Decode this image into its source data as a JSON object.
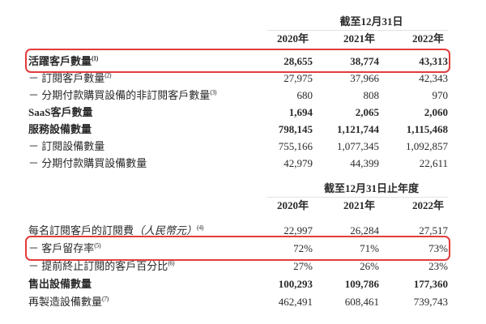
{
  "page": {
    "background": "#ffffff",
    "text_color": "#2a2a2a",
    "highlight_color": "#e23c3c"
  },
  "tables": [
    {
      "period_label": "截至12月31日",
      "years": [
        "2020年",
        "2021年",
        "2022年"
      ],
      "rows": [
        {
          "label": "活躍客戶數量",
          "footnote": "(1)",
          "values": [
            "28,655",
            "38,774",
            "43,313"
          ],
          "bold": true,
          "highlight": true
        },
        {
          "label": "－ 訂閱客戶數量",
          "footnote": "(2)",
          "values": [
            "27,975",
            "37,966",
            "42,343"
          ],
          "bold": false,
          "highlight": false
        },
        {
          "label": "－ 分期付款購買設備的非訂閱客戶數量",
          "footnote": "(3)",
          "values": [
            "680",
            "808",
            "970"
          ],
          "bold": false,
          "highlight": false
        },
        {
          "label": "SaaS客戶數量",
          "footnote": "",
          "values": [
            "1,694",
            "2,065",
            "2,060"
          ],
          "bold": true,
          "highlight": false
        },
        {
          "label": "服務設備數量",
          "footnote": "",
          "values": [
            "798,145",
            "1,121,744",
            "1,115,468"
          ],
          "bold": true,
          "highlight": false
        },
        {
          "label": "－ 訂閱設備數量",
          "footnote": "",
          "values": [
            "755,166",
            "1,077,345",
            "1,092,857"
          ],
          "bold": false,
          "highlight": false
        },
        {
          "label": "－ 分期付款購買設備數量",
          "footnote": "",
          "values": [
            "42,979",
            "44,399",
            "22,611"
          ],
          "bold": false,
          "highlight": false
        }
      ]
    },
    {
      "period_label": "截至12月31日止年度",
      "years": [
        "2020年",
        "2021年",
        "2022年"
      ],
      "rows": [
        {
          "label": "每名訂閱客戶的訂閱費",
          "label_italic": "（人民幣元）",
          "footnote": "(4)",
          "values": [
            "22,997",
            "26,284",
            "27,517"
          ],
          "bold": false,
          "highlight": false
        },
        {
          "label": "－ 客戶留存率",
          "footnote": "(5)",
          "values": [
            "72%",
            "71%",
            "73%"
          ],
          "bold": false,
          "highlight": true
        },
        {
          "label": "－ 提前終止訂閱的客戶百分比",
          "footnote": "(6)",
          "values": [
            "27%",
            "26%",
            "23%"
          ],
          "bold": false,
          "highlight": false
        },
        {
          "label": "售出設備數量",
          "footnote": "",
          "values": [
            "100,293",
            "109,786",
            "177,360"
          ],
          "bold": true,
          "highlight": false
        },
        {
          "label": "再製造設備數量",
          "footnote": "(7)",
          "values": [
            "462,491",
            "608,461",
            "739,743"
          ],
          "bold": false,
          "highlight": false
        }
      ]
    }
  ]
}
